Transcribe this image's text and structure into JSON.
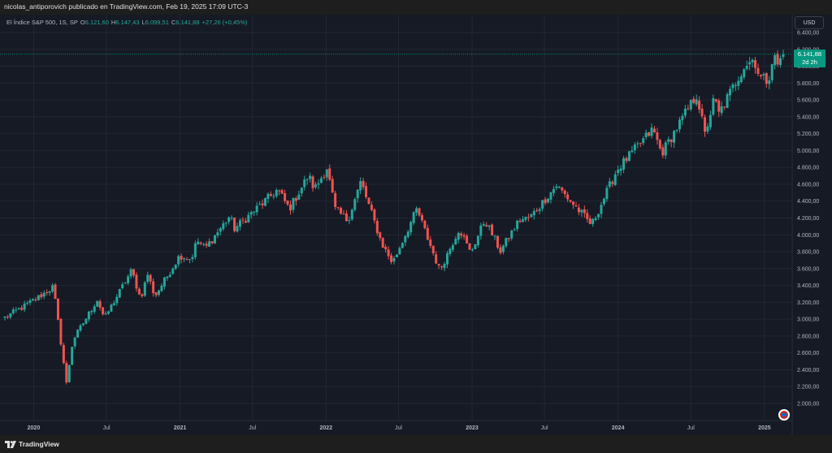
{
  "header": {
    "publisher": "nicolas_antiporovich publicado en TradingView.com, Feb 19, 2025 17:09 UTC-3"
  },
  "legend": {
    "symbol": "El Índice S&P 500, 1S, SP",
    "open_key": "O",
    "open": "6.121,60",
    "high_key": "H",
    "high": "6.147,43",
    "low_key": "L",
    "low": "6.099,51",
    "close_key": "C",
    "close": "6.141,88",
    "change": "+27,26 (+0,45%)"
  },
  "toolbar": {
    "currency": "USD"
  },
  "price_badge": {
    "price": "6.141,88",
    "countdown": "2d 2h"
  },
  "footer": {
    "brand": "TradingView"
  },
  "colors": {
    "background": "#161a25",
    "grid": "#232733",
    "up": "#26a69a",
    "down": "#ef5350",
    "badge": "#089981"
  },
  "icons": {
    "logo": "tradingview-logo-icon",
    "events": "us-flag-event-icon"
  },
  "chart_data": {
    "type": "candlestick",
    "interval": "1W",
    "y_axis": {
      "scale": "linear",
      "ticks": [
        "6.400,00",
        "6.200,00",
        "6.000,00",
        "5.800,00",
        "5.600,00",
        "5.400,00",
        "5.200,00",
        "5.000,00",
        "4.800,00",
        "4.600,00",
        "4.400,00",
        "4.200,00",
        "4.000,00",
        "3.800,00",
        "3.600,00",
        "3.400,00",
        "3.200,00",
        "3.000,00",
        "2.800,00",
        "2.600,00",
        "2.400,00",
        "2.200,00",
        "2.000,00"
      ],
      "tick_values": [
        6400,
        6200,
        6000,
        5800,
        5600,
        5400,
        5200,
        5000,
        4800,
        4600,
        4400,
        4200,
        4000,
        3800,
        3600,
        3400,
        3200,
        3000,
        2800,
        2600,
        2400,
        2200,
        2000
      ]
    },
    "x_axis": {
      "labels": [
        "2020",
        "Jul",
        "2021",
        "Jul",
        "2022",
        "Jul",
        "2023",
        "Jul",
        "2024",
        "Jul",
        "2025"
      ],
      "label_dates": [
        "2020-01-01",
        "2020-07-01",
        "2021-01-01",
        "2021-07-01",
        "2022-01-01",
        "2022-07-01",
        "2023-01-01",
        "2023-07-01",
        "2024-01-01",
        "2024-07-01",
        "2025-01-01"
      ],
      "start": "2019-10-21",
      "end": "2025-02-17"
    },
    "grid": true,
    "last_price": 6141.88,
    "path": [
      [
        "2019-10-21",
        3020
      ],
      [
        "2019-12-13",
        3168
      ],
      [
        "2020-01-24",
        3296
      ],
      [
        "2020-02-19",
        3386
      ],
      [
        "2020-03-23",
        2237
      ],
      [
        "2020-04-08",
        2750
      ],
      [
        "2020-06-08",
        3232
      ],
      [
        "2020-06-26",
        3010
      ],
      [
        "2020-09-02",
        3580
      ],
      [
        "2020-09-24",
        3240
      ],
      [
        "2020-10-12",
        3534
      ],
      [
        "2020-10-30",
        3270
      ],
      [
        "2020-12-31",
        3756
      ],
      [
        "2021-01-29",
        3714
      ],
      [
        "2021-02-12",
        3934
      ],
      [
        "2021-03-05",
        3842
      ],
      [
        "2021-05-07",
        4232
      ],
      [
        "2021-05-14",
        4060
      ],
      [
        "2021-09-02",
        4537
      ],
      [
        "2021-10-01",
        4307
      ],
      [
        "2021-11-18",
        4705
      ],
      [
        "2021-12-03",
        4538
      ],
      [
        "2022-01-03",
        4796
      ],
      [
        "2022-01-24",
        4300
      ],
      [
        "2022-02-24",
        4170
      ],
      [
        "2022-03-29",
        4631
      ],
      [
        "2022-05-20",
        3900
      ],
      [
        "2022-06-16",
        3666
      ],
      [
        "2022-08-16",
        4305
      ],
      [
        "2022-10-12",
        3577
      ],
      [
        "2022-11-30",
        4080
      ],
      [
        "2022-12-28",
        3783
      ],
      [
        "2023-02-02",
        4179
      ],
      [
        "2023-03-13",
        3808
      ],
      [
        "2023-04-28",
        4169
      ],
      [
        "2023-05-26",
        4205
      ],
      [
        "2023-07-31",
        4588
      ],
      [
        "2023-10-27",
        4117
      ],
      [
        "2023-12-29",
        4770
      ],
      [
        "2024-03-28",
        5254
      ],
      [
        "2024-04-19",
        4967
      ],
      [
        "2024-07-16",
        5667
      ],
      [
        "2024-08-05",
        5186
      ],
      [
        "2024-08-30",
        5648
      ],
      [
        "2024-09-06",
        5408
      ],
      [
        "2024-11-11",
        6001
      ],
      [
        "2024-12-06",
        6090
      ],
      [
        "2024-12-20",
        5870
      ],
      [
        "2025-01-10",
        5827
      ],
      [
        "2025-01-23",
        6129
      ],
      [
        "2025-02-03",
        6021
      ],
      [
        "2025-02-19",
        6141.88
      ]
    ]
  }
}
